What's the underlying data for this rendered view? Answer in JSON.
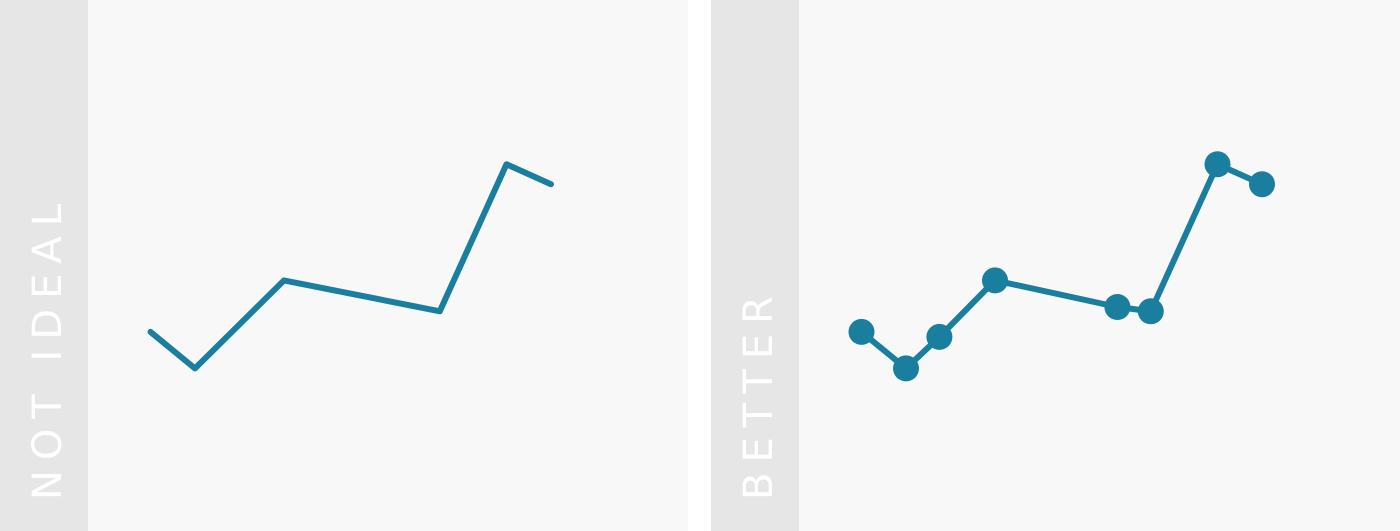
{
  "panels": {
    "left": {
      "label": "NOT IDEAL"
    },
    "right": {
      "label": "BETTER"
    }
  },
  "colors": {
    "line": "#1a7f9f",
    "panel_background": "#f8f8f8",
    "strip_background": "#e6e6e6",
    "label_text": "#ffffff"
  },
  "chart_data": [
    {
      "type": "line",
      "title": "",
      "xlabel": "",
      "ylabel": "",
      "show_markers": false,
      "x": [
        1.0,
        2.0,
        4.0,
        7.5,
        9.0,
        10.0
      ],
      "values": [
        3.0,
        1.9,
        4.55,
        3.62,
        8.05,
        7.45
      ],
      "xlim": [
        0,
        12
      ],
      "ylim": [
        -3,
        13
      ],
      "grid": false
    },
    {
      "type": "line",
      "title": "",
      "xlabel": "",
      "ylabel": "",
      "show_markers": true,
      "x": [
        1.0,
        2.0,
        2.75,
        4.0,
        6.75,
        7.5,
        9.0,
        10.0
      ],
      "values": [
        3.0,
        1.9,
        2.85,
        4.55,
        3.75,
        3.62,
        8.05,
        7.45
      ],
      "xlim": [
        0,
        12
      ],
      "ylim": [
        -3,
        13
      ],
      "grid": false
    }
  ]
}
